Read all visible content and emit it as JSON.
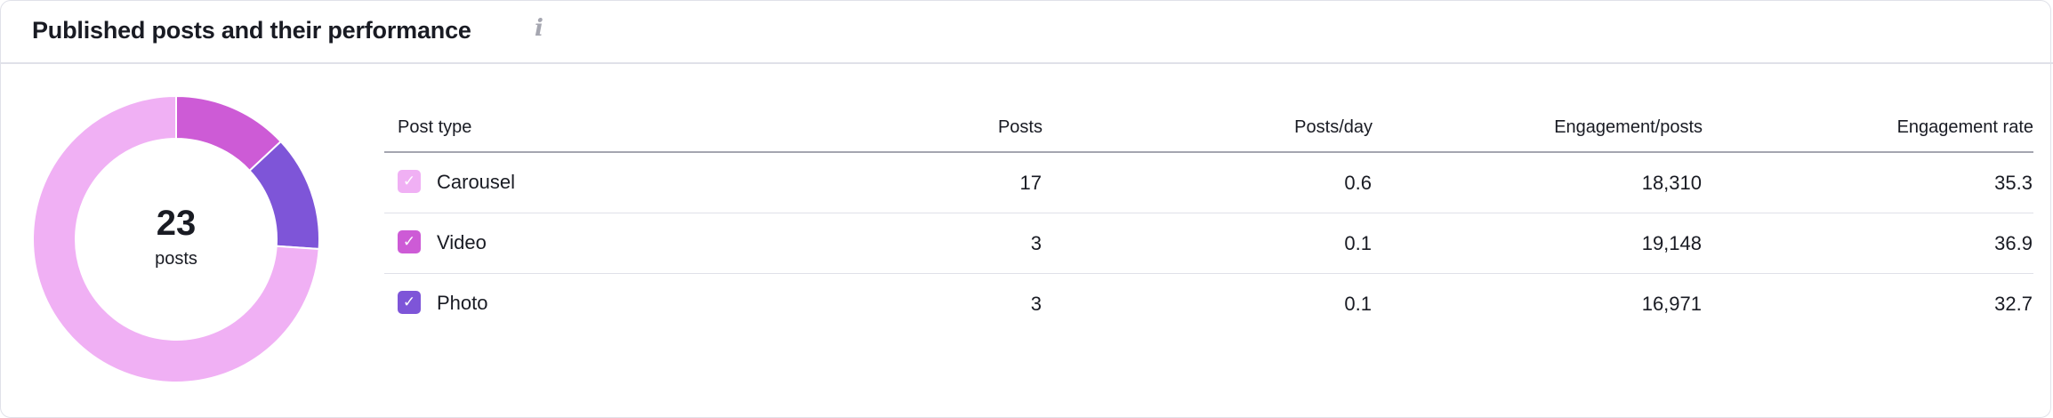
{
  "widget": {
    "title": "Published posts and their performance",
    "info_icon": "info-icon"
  },
  "chart_data": {
    "type": "pie",
    "variant": "donut",
    "center_value": "23",
    "center_label": "posts",
    "slices": [
      {
        "name": "Video",
        "value": 3,
        "color": "#CD5BD6"
      },
      {
        "name": "Photo",
        "value": 3,
        "color": "#7E55D8"
      },
      {
        "name": "Carousel",
        "value": 17,
        "color": "#F0B0F4"
      }
    ]
  },
  "table": {
    "columns": [
      "Post type",
      "Posts",
      "Posts/day",
      "Engagement/posts",
      "Engagement rate"
    ],
    "rows": [
      {
        "type": "Carousel",
        "color": "#F0B0F4",
        "checked": true,
        "posts": "17",
        "posts_per_day": "0.6",
        "engagement_per_post": "18,310",
        "engagement_rate": "35.3"
      },
      {
        "type": "Video",
        "color": "#CD5BD6",
        "checked": true,
        "posts": "3",
        "posts_per_day": "0.1",
        "engagement_per_post": "19,148",
        "engagement_rate": "36.9"
      },
      {
        "type": "Photo",
        "color": "#7E55D8",
        "checked": true,
        "posts": "3",
        "posts_per_day": "0.1",
        "engagement_per_post": "16,971",
        "engagement_rate": "32.7"
      }
    ]
  }
}
